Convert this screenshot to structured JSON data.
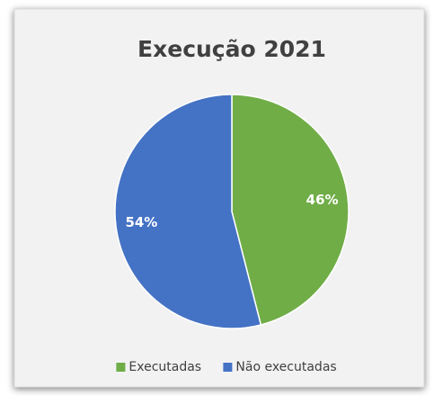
{
  "chart_data": {
    "type": "pie",
    "title": "Execução 2021",
    "categories": [
      "Executadas",
      "Não executadas"
    ],
    "values": [
      46,
      54
    ],
    "value_labels": [
      "46%",
      "54%"
    ],
    "colors": [
      "#70ad47",
      "#4472c4"
    ],
    "legend": "bottom"
  }
}
